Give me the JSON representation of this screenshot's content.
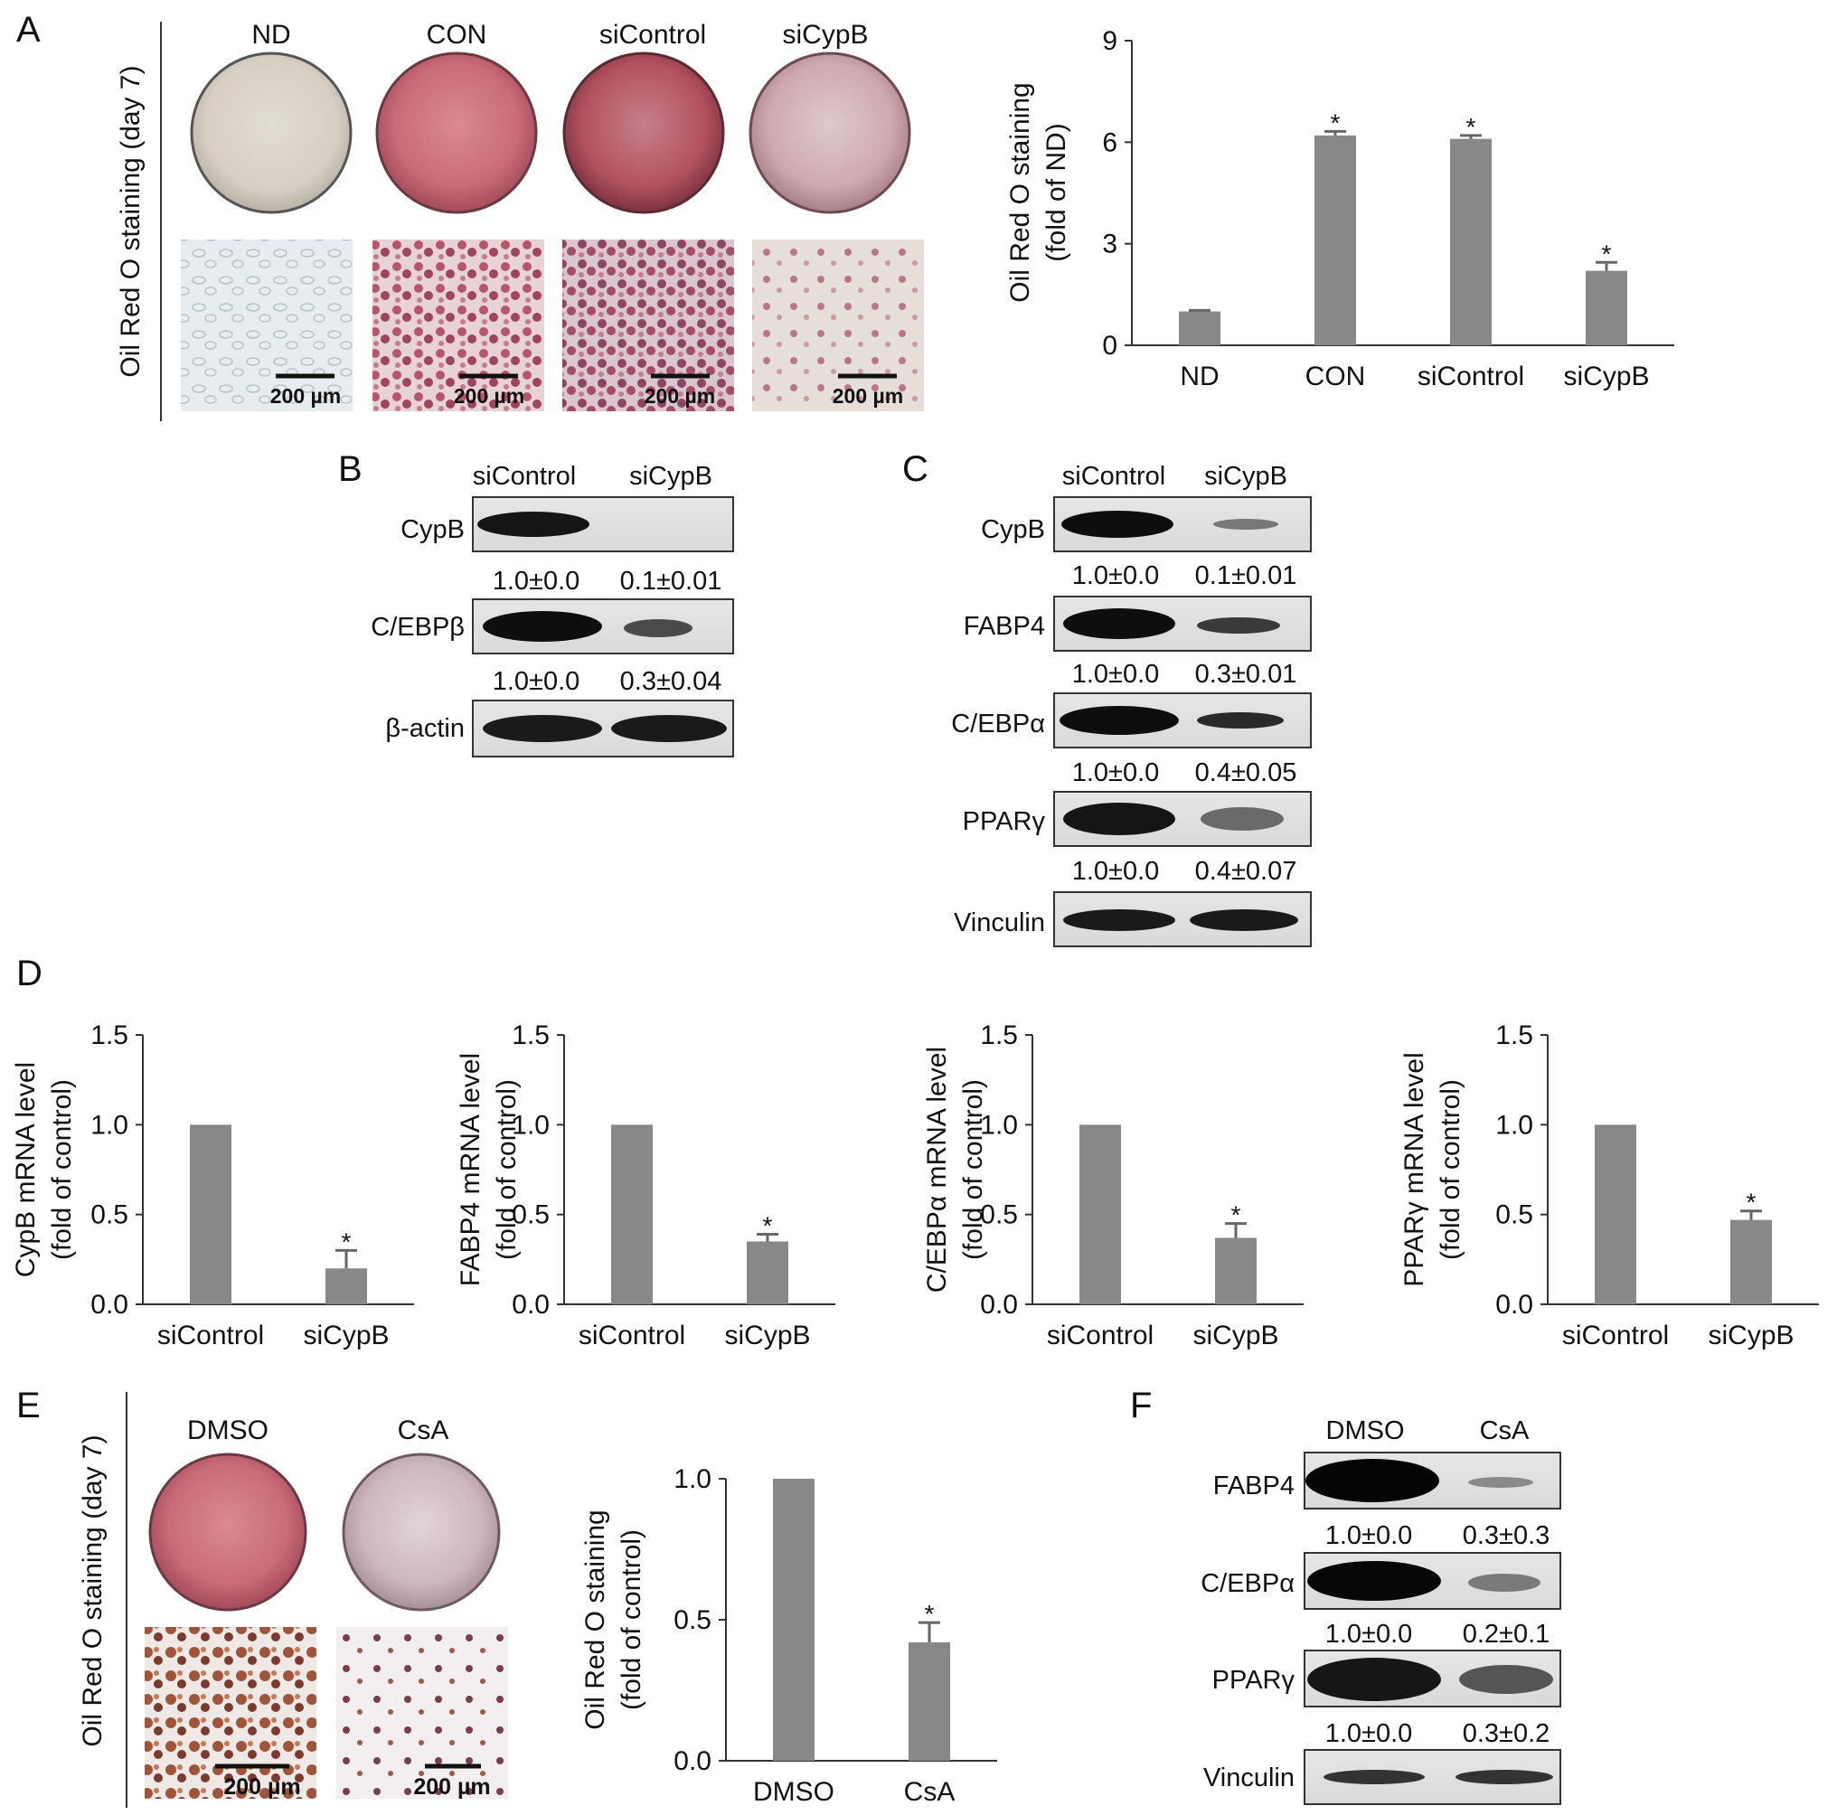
{
  "panels": {
    "A": {
      "letter": "A",
      "side_label": "Oil Red O staining (day 7)",
      "groups": [
        "ND",
        "CON",
        "siControl",
        "siCypB"
      ],
      "scale_bar": "200 µm"
    },
    "B": {
      "letter": "B",
      "columns": [
        "siControl",
        "siCypB"
      ],
      "rows": [
        "CypB",
        "C/EBPβ",
        "β-actin"
      ],
      "quant": [
        [
          "1.0±0.0",
          "0.1±0.01"
        ],
        [
          "1.0±0.0",
          "0.3±0.04"
        ]
      ]
    },
    "C": {
      "letter": "C",
      "columns": [
        "siControl",
        "siCypB"
      ],
      "rows": [
        "CypB",
        "FABP4",
        "C/EBPα",
        "PPARγ",
        "Vinculin"
      ],
      "quant": [
        [
          "1.0±0.0",
          "0.1±0.01"
        ],
        [
          "1.0±0.0",
          "0.3±0.01"
        ],
        [
          "1.0±0.0",
          "0.4±0.05"
        ],
        [
          "1.0±0.0",
          "0.4±0.07"
        ]
      ]
    },
    "D": {
      "letter": "D"
    },
    "E": {
      "letter": "E",
      "side_label": "Oil Red O staining (day 7)",
      "groups": [
        "DMSO",
        "CsA"
      ],
      "scale_bar": "200 µm"
    },
    "F": {
      "letter": "F",
      "columns": [
        "DMSO",
        "CsA"
      ],
      "rows": [
        "FABP4",
        "C/EBPα",
        "PPARγ",
        "Vinculin"
      ],
      "quant": [
        [
          "1.0±0.0",
          "0.3±0.3"
        ],
        [
          "1.0±0.0",
          "0.2±0.1"
        ],
        [
          "1.0±0.0",
          "0.3±0.2"
        ]
      ]
    }
  },
  "colors": {
    "bar": "#888888",
    "axis": "#333333",
    "text": "#111111"
  },
  "chart_data": [
    {
      "id": "A",
      "type": "bar",
      "categories": [
        "ND",
        "CON",
        "siControl",
        "siCypB"
      ],
      "values": [
        1.0,
        6.2,
        6.1,
        2.2
      ],
      "errors": [
        0.03,
        0.12,
        0.1,
        0.25
      ],
      "significance": [
        "",
        "*",
        "*",
        "*"
      ],
      "ylabel": "Oil Red O staining",
      "ylabel2": "(fold of ND)",
      "ylim": [
        0,
        9
      ],
      "yticks": [
        0,
        3,
        6,
        9
      ],
      "ytick_labels": [
        "0",
        "3",
        "6",
        "9"
      ]
    },
    {
      "id": "D1",
      "type": "bar",
      "categories": [
        "siControl",
        "siCypB"
      ],
      "values": [
        1.0,
        0.2
      ],
      "errors": [
        0.0,
        0.1
      ],
      "significance": [
        "",
        "*"
      ],
      "ylabel": "CypB mRNA level",
      "ylabel2": "(fold of control)",
      "ylim": [
        0,
        1.5
      ],
      "yticks": [
        0,
        0.5,
        1.0,
        1.5
      ],
      "ytick_labels": [
        "0.0",
        "0.5",
        "1.0",
        "1.5"
      ]
    },
    {
      "id": "D2",
      "type": "bar",
      "categories": [
        "siControl",
        "siCypB"
      ],
      "values": [
        1.0,
        0.35
      ],
      "errors": [
        0.0,
        0.04
      ],
      "significance": [
        "",
        "*"
      ],
      "ylabel": "FABP4 mRNA level",
      "ylabel2": "(fold of control)",
      "ylim": [
        0,
        1.5
      ],
      "yticks": [
        0,
        0.5,
        1.0,
        1.5
      ],
      "ytick_labels": [
        "0.0",
        "0.5",
        "1.0",
        "1.5"
      ]
    },
    {
      "id": "D3",
      "type": "bar",
      "categories": [
        "siControl",
        "siCypB"
      ],
      "values": [
        1.0,
        0.37
      ],
      "errors": [
        0.0,
        0.08
      ],
      "significance": [
        "",
        "*"
      ],
      "ylabel": "C/EBPα mRNA level",
      "ylabel2": "(fold of control)",
      "ylim": [
        0,
        1.5
      ],
      "yticks": [
        0,
        0.5,
        1.0,
        1.5
      ],
      "ytick_labels": [
        "0.0",
        "0.5",
        "1.0",
        "1.5"
      ]
    },
    {
      "id": "D4",
      "type": "bar",
      "categories": [
        "siControl",
        "siCypB"
      ],
      "values": [
        1.0,
        0.47
      ],
      "errors": [
        0.0,
        0.05
      ],
      "significance": [
        "",
        "*"
      ],
      "ylabel": "PPARγ mRNA level",
      "ylabel2": "(fold of control)",
      "ylim": [
        0,
        1.5
      ],
      "yticks": [
        0,
        0.5,
        1.0,
        1.5
      ],
      "ytick_labels": [
        "0.0",
        "0.5",
        "1.0",
        "1.5"
      ]
    },
    {
      "id": "E",
      "type": "bar",
      "categories": [
        "DMSO",
        "CsA"
      ],
      "values": [
        1.0,
        0.42
      ],
      "errors": [
        0.0,
        0.07
      ],
      "significance": [
        "",
        "*"
      ],
      "ylabel": "Oil Red O staining",
      "ylabel2": "(fold of control)",
      "ylim": [
        0,
        1.0
      ],
      "yticks": [
        0,
        0.5,
        1.0
      ],
      "ytick_labels": [
        "0.0",
        "0.5",
        "1.0"
      ]
    }
  ]
}
